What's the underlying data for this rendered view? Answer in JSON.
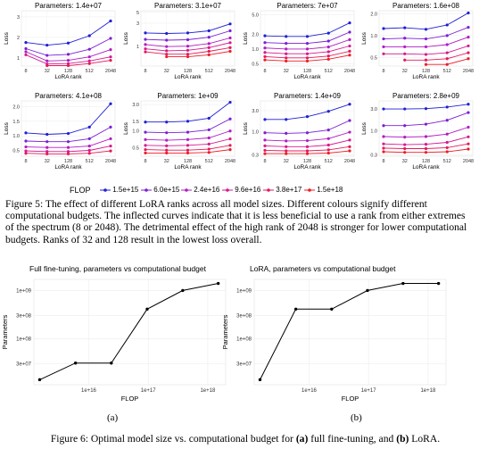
{
  "figure5": {
    "legend": {
      "title": "FLOP",
      "items": [
        {
          "label": "1.5e+15",
          "color": "#1f1fd6"
        },
        {
          "label": "6.0e+15",
          "color": "#7b1fd6"
        },
        {
          "label": "2.4e+16",
          "color": "#b21cc2"
        },
        {
          "label": "9.6e+16",
          "color": "#d6198e"
        },
        {
          "label": "3.8e+17",
          "color": "#e5195a"
        },
        {
          "label": "1.5e+18",
          "color": "#ee1c25"
        }
      ]
    },
    "caption": "Figure 5: The effect of different LoRA ranks across all model sizes. Different colours signify different computational budgets. The inflected curves indicate that it is less beneficial to use a rank from either extremes of the spectrum (8 or 2048). The detrimental effect of the high rank of 2048 is stronger for lower computational budgets. Ranks of 32 and 128 result in the lowest loss overall."
  },
  "chart_data": [
    {
      "type": "line",
      "title": "Parameters: 1.4e+07",
      "xlabel": "LoRA rank",
      "ylabel": "Loss",
      "x": [
        "8",
        "32",
        "128",
        "512",
        "2048"
      ],
      "y_ticks": [
        "1",
        "2",
        "3"
      ],
      "ylim": [
        0.6,
        3.3
      ],
      "series": [
        {
          "values": [
            1.75,
            1.62,
            1.72,
            2.08,
            2.8
          ]
        },
        {
          "values": [
            1.45,
            1.12,
            1.17,
            1.42,
            1.95
          ]
        },
        {
          "values": [
            1.3,
            0.85,
            0.88,
            1.05,
            1.4
          ]
        },
        {
          "values": [
            1.15,
            0.7,
            0.72,
            0.85,
            1.05
          ]
        },
        {
          "values": [
            null,
            0.62,
            0.62,
            0.72,
            0.88
          ]
        }
      ]
    },
    {
      "type": "line",
      "title": "Parameters: 3.1e+07",
      "xlabel": "LoRA rank",
      "ylabel": "Loss",
      "x": [
        "8",
        "32",
        "128",
        "512",
        "2048"
      ],
      "y_ticks": [
        "1",
        "3",
        "5"
      ],
      "ylim": [
        0.4,
        5.4
      ],
      "scale": "log",
      "series": [
        {
          "values": [
            1.9,
            1.85,
            1.9,
            2.1,
            2.9
          ]
        },
        {
          "values": [
            1.4,
            1.35,
            1.38,
            1.55,
            2.1
          ]
        },
        {
          "values": [
            1.1,
            1.0,
            1.02,
            1.15,
            1.5
          ]
        },
        {
          "values": [
            0.9,
            0.82,
            0.84,
            0.95,
            1.2
          ]
        },
        {
          "values": [
            0.78,
            0.7,
            0.7,
            0.8,
            0.95
          ]
        },
        {
          "values": [
            null,
            0.62,
            0.62,
            0.68,
            0.8
          ]
        }
      ]
    },
    {
      "type": "line",
      "title": "Parameters: 7e+07",
      "xlabel": "LoRA rank",
      "ylabel": "Loss",
      "x": [
        "8",
        "32",
        "128",
        "512",
        "2048"
      ],
      "y_ticks": [
        "0.5",
        "1.0",
        "2.0",
        "5.0"
      ],
      "ylim": [
        0.45,
        6.0
      ],
      "scale": "log",
      "series": [
        {
          "values": [
            1.85,
            1.8,
            1.8,
            2.1,
            3.4
          ]
        },
        {
          "values": [
            1.35,
            1.3,
            1.3,
            1.45,
            2.2
          ]
        },
        {
          "values": [
            1.05,
            1.0,
            1.0,
            1.1,
            1.55
          ]
        },
        {
          "values": [
            0.85,
            0.8,
            0.8,
            0.88,
            1.15
          ]
        },
        {
          "values": [
            0.7,
            0.66,
            0.66,
            0.72,
            0.9
          ]
        },
        {
          "values": [
            0.6,
            0.57,
            0.57,
            0.62,
            0.75
          ]
        }
      ]
    },
    {
      "type": "line",
      "title": "Parameters: 1.6e+08",
      "xlabel": "LoRA rank",
      "ylabel": "Loss",
      "x": [
        "8",
        "32",
        "128",
        "512",
        "2048"
      ],
      "y_ticks": [
        "0.5",
        "1.0",
        "2.0"
      ],
      "ylim": [
        0.38,
        2.2
      ],
      "scale": "log",
      "series": [
        {
          "values": [
            1.25,
            1.28,
            1.22,
            1.4,
            2.05
          ]
        },
        {
          "values": [
            0.9,
            0.92,
            0.9,
            1.0,
            1.3
          ]
        },
        {
          "values": [
            0.7,
            0.7,
            0.7,
            0.75,
            0.95
          ]
        },
        {
          "values": [
            0.56,
            0.56,
            0.55,
            0.58,
            0.72
          ]
        },
        {
          "values": [
            null,
            0.46,
            0.46,
            0.48,
            0.58
          ]
        },
        {
          "values": [
            null,
            null,
            0.4,
            0.4,
            0.48
          ]
        }
      ]
    },
    {
      "type": "line",
      "title": "Parameters: 4.1e+08",
      "xlabel": "LoRA rank",
      "ylabel": "Loss",
      "x": [
        "8",
        "32",
        "128",
        "512",
        "2048"
      ],
      "y_ticks": [
        "0.5",
        "1.0",
        "1.5",
        "2.0"
      ],
      "ylim": [
        0.3,
        2.2
      ],
      "series": [
        {
          "values": [
            1.1,
            1.05,
            1.08,
            1.3,
            2.1
          ]
        },
        {
          "values": [
            0.82,
            0.8,
            0.8,
            0.9,
            1.3
          ]
        },
        {
          "values": [
            0.62,
            0.6,
            0.6,
            0.65,
            0.9
          ]
        },
        {
          "values": [
            0.48,
            0.46,
            0.46,
            0.5,
            0.65
          ]
        },
        {
          "values": [
            0.4,
            0.38,
            0.38,
            0.4,
            0.48
          ]
        }
      ]
    },
    {
      "type": "line",
      "title": "Parameters: 1e+09",
      "xlabel": "LoRA rank",
      "ylabel": "Loss",
      "x": [
        "8",
        "32",
        "128",
        "512",
        "2048"
      ],
      "y_ticks": [
        "0.5",
        "1.0",
        "1.5",
        "3.0"
      ],
      "ylim": [
        0.35,
        3.5
      ],
      "scale": "log",
      "series": [
        {
          "values": [
            1.45,
            1.45,
            1.5,
            1.7,
            3.3
          ]
        },
        {
          "values": [
            0.95,
            0.93,
            0.95,
            1.05,
            1.65
          ]
        },
        {
          "values": [
            0.7,
            0.68,
            0.7,
            0.75,
            1.0
          ]
        },
        {
          "values": [
            0.55,
            0.54,
            0.55,
            0.58,
            0.72
          ]
        },
        {
          "values": [
            0.46,
            0.45,
            0.45,
            0.47,
            0.55
          ]
        },
        {
          "values": [
            0.4,
            0.4,
            0.4,
            0.41,
            0.46
          ]
        }
      ]
    },
    {
      "type": "line",
      "title": "Parameters: 1.4e+09",
      "xlabel": "LoRA rank",
      "ylabel": "Loss",
      "x": [
        "8",
        "32",
        "128",
        "512",
        "2048"
      ],
      "y_ticks": [
        "0.3",
        "1.0",
        "3.0"
      ],
      "ylim": [
        0.28,
        5.0
      ],
      "scale": "log",
      "series": [
        {
          "values": [
            1.9,
            1.9,
            2.2,
            2.9,
            4.2
          ]
        },
        {
          "values": [
            0.95,
            0.92,
            0.95,
            1.1,
            1.8
          ]
        },
        {
          "values": [
            0.65,
            0.62,
            0.63,
            0.7,
            0.98
          ]
        },
        {
          "values": [
            0.48,
            0.46,
            0.46,
            0.5,
            0.65
          ]
        },
        {
          "values": [
            0.38,
            0.37,
            0.37,
            0.39,
            0.46
          ]
        },
        {
          "values": [
            0.32,
            0.32,
            0.32,
            0.33,
            0.37
          ]
        }
      ]
    },
    {
      "type": "line",
      "title": "Parameters: 2.8e+09",
      "xlabel": "LoRA rank",
      "ylabel": "Loss",
      "x": [
        "8",
        "32",
        "128",
        "512",
        "2048"
      ],
      "y_ticks": [
        "0.3",
        "1.0",
        "3.0"
      ],
      "ylim": [
        0.28,
        4.5
      ],
      "scale": "log",
      "series": [
        {
          "values": [
            3.0,
            3.0,
            3.05,
            3.3,
            3.8
          ]
        },
        {
          "values": [
            1.3,
            1.3,
            1.4,
            1.7,
            2.5
          ]
        },
        {
          "values": [
            0.75,
            0.73,
            0.75,
            0.85,
            1.2
          ]
        },
        {
          "values": [
            0.52,
            0.5,
            0.51,
            0.56,
            0.74
          ]
        },
        {
          "values": [
            0.42,
            0.41,
            0.41,
            0.43,
            0.52
          ]
        },
        {
          "values": [
            0.35,
            0.34,
            0.34,
            0.35,
            0.4
          ]
        }
      ]
    },
    {
      "type": "line",
      "title": "Full fine-tuning, parameters vs computational budget",
      "xlabel": "FLOP",
      "ylabel": "Parameters",
      "scale": "log",
      "x_ticks": [
        "1e+16",
        "1e+17",
        "1e+18"
      ],
      "y_ticks": [
        "3e+07",
        "1e+08",
        "3e+08",
        "1e+09"
      ],
      "x": [
        1500000000000000.0,
        6000000000000000.0,
        2.4e+16,
        9.6e+16,
        3.8e+17,
        1.5e+18
      ],
      "values": [
        14000000.0,
        31000000.0,
        31000000.0,
        410000000.0,
        1000000000.0,
        1400000000.0
      ]
    },
    {
      "type": "line",
      "title": "LoRA, parameters vs computational budget",
      "xlabel": "FLOP",
      "ylabel": "Parameters",
      "scale": "log",
      "x_ticks": [
        "1e+16",
        "1e+17",
        "1e+18"
      ],
      "y_ticks": [
        "3e+07",
        "1e+08",
        "3e+08",
        "1e+09"
      ],
      "x": [
        1500000000000000.0,
        6000000000000000.0,
        2.4e+16,
        9.6e+16,
        3.8e+17,
        1.5e+18
      ],
      "values": [
        14000000.0,
        410000000.0,
        410000000.0,
        1000000000.0,
        1400000000.0,
        1400000000.0
      ]
    }
  ],
  "figure6": {
    "sub_a": "(a)",
    "sub_b": "(b)",
    "caption_prefix": "Figure 6: Optimal model size vs. computational budget for ",
    "caption_a": "(a)",
    "caption_mid": " full fine-tuning, and ",
    "caption_b": "(b)",
    "caption_end": " LoRA."
  }
}
